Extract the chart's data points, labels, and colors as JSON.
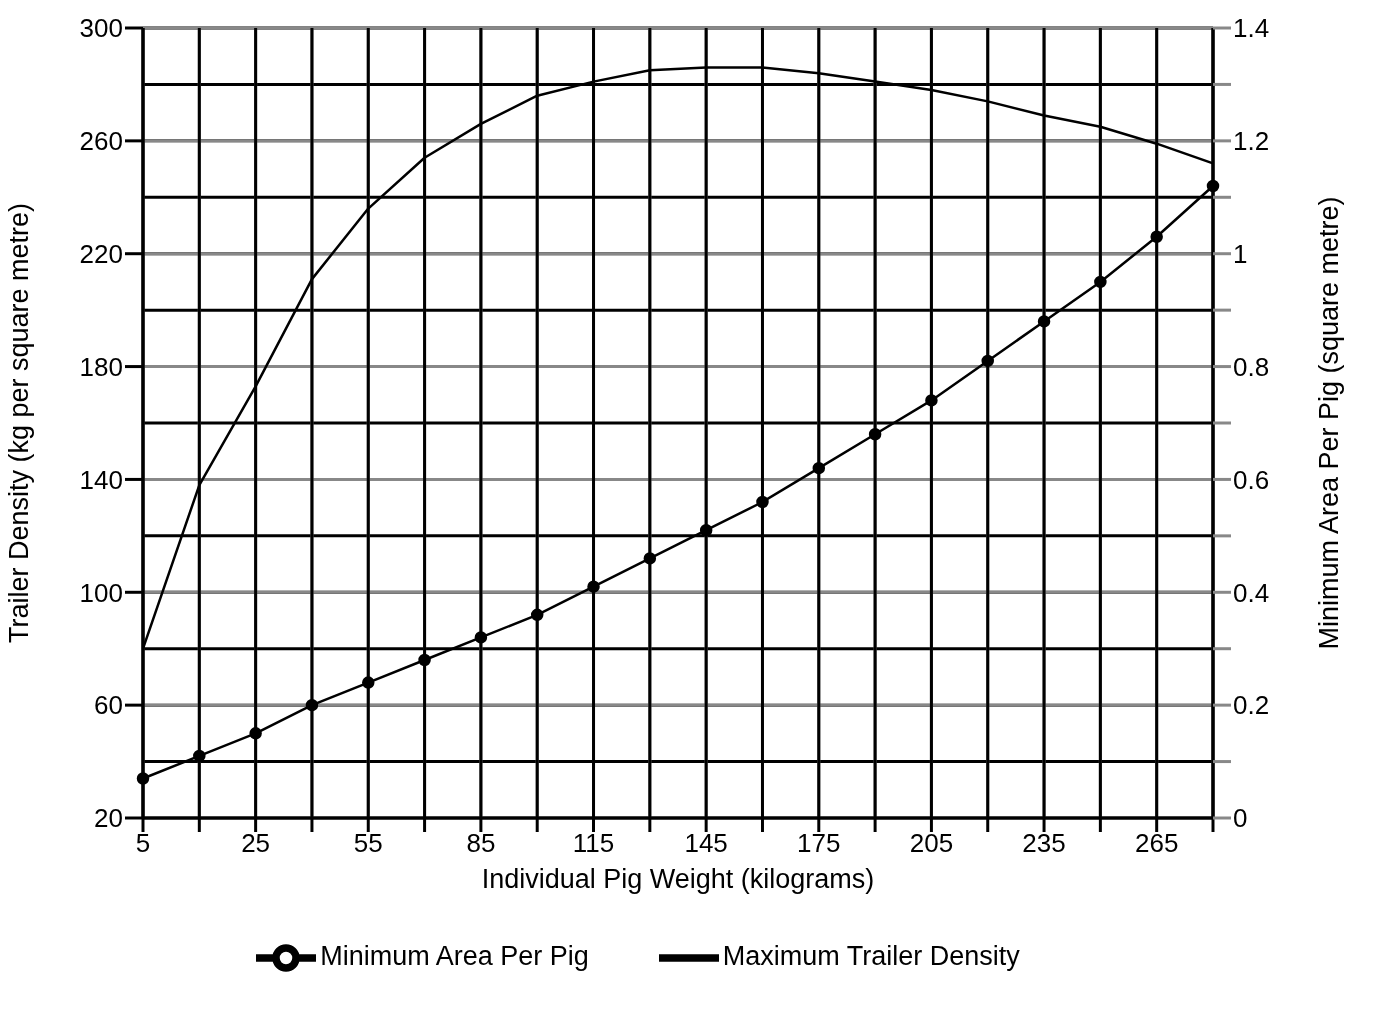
{
  "chart_data": {
    "type": "line",
    "xlabel": "Individual Pig Weight (kilograms)",
    "ylabel": "Trailer Density (kg per square metre)",
    "y2label": "Minimum Area Per Pig (square metre)",
    "categories": [
      "5",
      null,
      "25",
      null,
      "55",
      null,
      "85",
      null,
      "115",
      null,
      "145",
      null,
      "175",
      null,
      "205",
      null,
      "235",
      null,
      "265",
      null
    ],
    "series": [
      {
        "name": "Minimum Area Per Pig",
        "color": "#000000",
        "axis": "y2",
        "marker": "circle",
        "values": [
          0.07,
          0.11,
          0.15,
          0.2,
          0.24,
          0.28,
          0.32,
          0.36,
          0.41,
          0.46,
          0.51,
          0.56,
          0.62,
          0.68,
          0.74,
          0.81,
          0.88,
          0.95,
          1.03,
          1.12
        ]
      },
      {
        "name": "Maximum Trailer Density",
        "color": "#000000",
        "marker": "none",
        "values": [
          80,
          138,
          173,
          211,
          236,
          254,
          266,
          276,
          281,
          285,
          286,
          286,
          284,
          281,
          278,
          274,
          269,
          265,
          259,
          252
        ]
      }
    ],
    "ylim": [
      20,
      300
    ],
    "yticks": [
      20,
      60,
      100,
      140,
      180,
      220,
      260,
      300
    ],
    "y2lim": [
      0,
      1.4
    ],
    "y2ticks": [
      0,
      {
        "value": 0.1,
        "label": null
      },
      0.2,
      {
        "value": 0.3,
        "label": null
      },
      0.4,
      {
        "value": 0.5,
        "label": null
      },
      0.6,
      {
        "value": 0.7,
        "label": null
      },
      0.8,
      {
        "value": 0.9,
        "label": null
      },
      1,
      {
        "value": 1.1,
        "label": null
      },
      1.2,
      {
        "value": 1.3,
        "label": null
      },
      1.4
    ],
    "grid": true,
    "legend": "bottom",
    "line_style": "solid"
  }
}
